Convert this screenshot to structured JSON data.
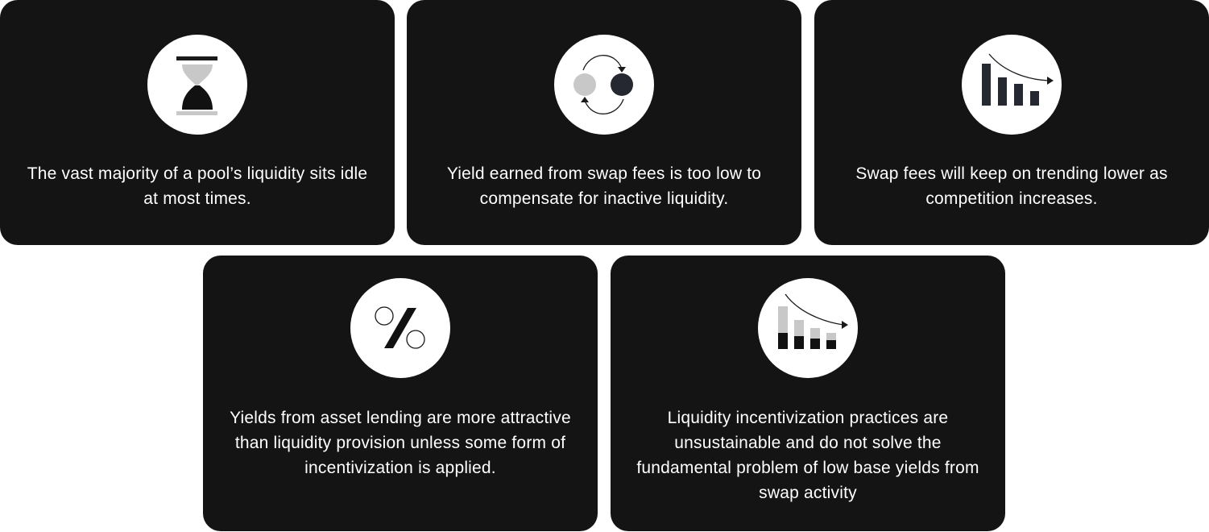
{
  "cards": [
    {
      "icon": "hourglass-icon",
      "text": "The vast majority of a pool’s liquidity sits idle at most times."
    },
    {
      "icon": "swap-arrows-icon",
      "text": "Yield earned from swap fees is too low to compensate for inactive liquidity."
    },
    {
      "icon": "declining-bar-chart-icon",
      "text": "Swap fees will keep on trending lower as competition increases."
    },
    {
      "icon": "percent-icon",
      "text": "Yields from asset lending are more attractive than liquidity provision unless some form of incentivization is applied."
    },
    {
      "icon": "declining-stacked-bar-chart-icon",
      "text": "Liquidity incentivization practices are unsustainable and do not solve the fundamental problem of low base yields from swap activity"
    }
  ],
  "colors": {
    "card_bg": "#141414",
    "icon_bg": "#ffffff",
    "dark": "#1a1a1a",
    "light_gray": "#c8c8c8",
    "navy": "#252830"
  }
}
